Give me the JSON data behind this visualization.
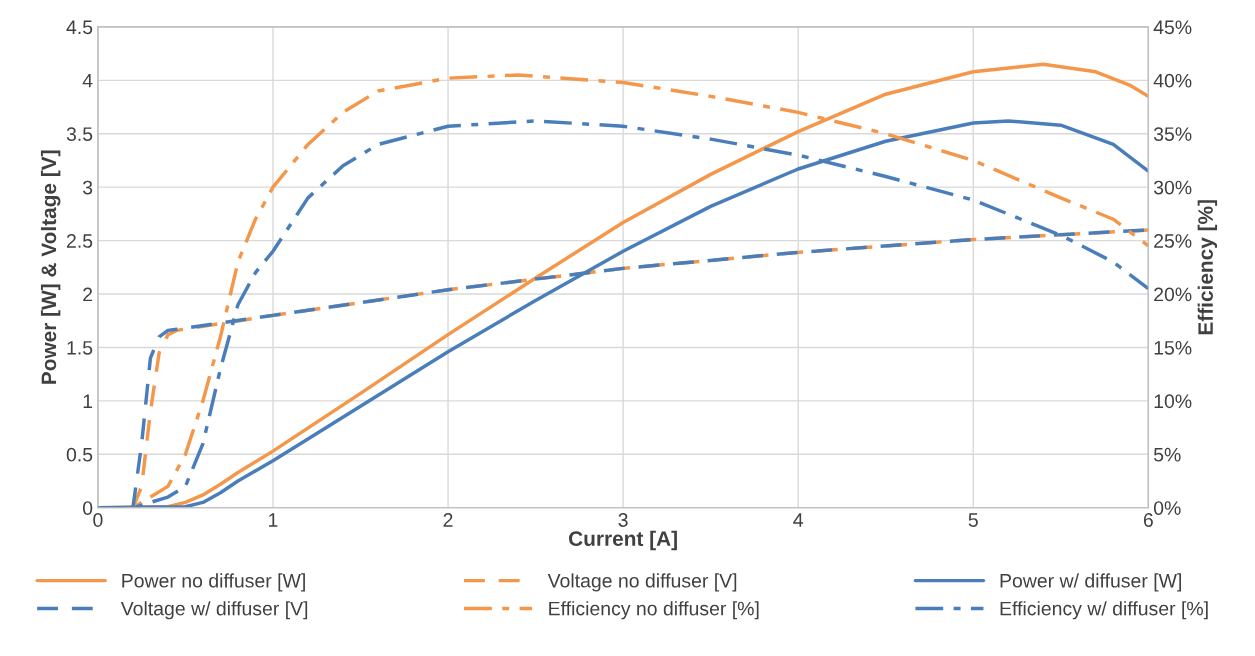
{
  "chart_data": {
    "type": "line",
    "xlabel": "Current [A]",
    "ylabel": "Power [W] & Voltage [V]",
    "y2label": "Efficiency [%]",
    "xlim": [
      0,
      6
    ],
    "xticks": [
      0,
      1,
      2,
      3,
      4,
      5,
      6
    ],
    "ylim": [
      0,
      4.5
    ],
    "yticks": [
      0,
      0.5,
      1,
      1.5,
      2,
      2.5,
      3,
      3.5,
      4,
      4.5
    ],
    "y2lim": [
      0,
      45
    ],
    "y2ticks": [
      {
        "value": 0,
        "label": "0%"
      },
      {
        "value": 5,
        "label": "5%"
      },
      {
        "value": 10,
        "label": "10%"
      },
      {
        "value": 15,
        "label": "15%"
      },
      {
        "value": 20,
        "label": "20%"
      },
      {
        "value": 25,
        "label": "25%"
      },
      {
        "value": 30,
        "label": "30%"
      },
      {
        "value": 35,
        "label": "35%"
      },
      {
        "value": 40,
        "label": "40%"
      },
      {
        "value": 45,
        "label": "45%"
      }
    ],
    "grid": true,
    "legend": "bottom",
    "marker": "none",
    "series": [
      {
        "name": "Power no diffuser [W]",
        "color": "#f4974a",
        "line_style": "solid",
        "x": [
          0,
          0.4,
          0.5,
          0.6,
          0.7,
          0.8,
          1,
          1.5,
          2,
          2.5,
          3,
          3.5,
          4,
          4.5,
          5,
          5.4,
          5.7,
          5.9,
          6
        ],
        "values": [
          0,
          0.01,
          0.05,
          0.12,
          0.22,
          0.33,
          0.53,
          1.07,
          1.62,
          2.15,
          2.67,
          3.12,
          3.52,
          3.87,
          4.08,
          4.15,
          4.08,
          3.95,
          3.85
        ]
      },
      {
        "name": "Voltage no diffuser [V]",
        "color": "#f4974a",
        "line_style": "dashed",
        "x": [
          0,
          0.2,
          0.25,
          0.3,
          0.35,
          0.4,
          0.45,
          1,
          2,
          3,
          4,
          5,
          6
        ],
        "values": [
          0,
          0,
          0.2,
          0.9,
          1.45,
          1.62,
          1.66,
          1.8,
          2.04,
          2.24,
          2.39,
          2.51,
          2.6
        ]
      },
      {
        "name": "Power w/ diffuser [W]",
        "color": "#4a7ebb",
        "line_style": "solid",
        "x": [
          0,
          0.5,
          0.6,
          0.7,
          0.8,
          1,
          1.5,
          2,
          2.5,
          3,
          3.5,
          4,
          4.5,
          5,
          5.2,
          5.5,
          5.8,
          6
        ],
        "values": [
          0,
          0.01,
          0.05,
          0.14,
          0.25,
          0.44,
          0.95,
          1.46,
          1.94,
          2.4,
          2.82,
          3.17,
          3.43,
          3.6,
          3.62,
          3.58,
          3.4,
          3.15
        ]
      },
      {
        "name": "Voltage w/ diffuser [V]",
        "color": "#4a7ebb",
        "line_style": "dashed",
        "x": [
          0,
          0.2,
          0.25,
          0.3,
          0.35,
          0.4,
          0.45,
          1,
          2,
          3,
          4,
          5,
          6
        ],
        "values": [
          0,
          0,
          0.6,
          1.4,
          1.6,
          1.66,
          1.67,
          1.8,
          2.04,
          2.24,
          2.39,
          2.51,
          2.6
        ]
      },
      {
        "name": "Efficiency no diffuser [%]",
        "color": "#f4974a",
        "line_style": "dashdot",
        "axis": "y2",
        "x": [
          0,
          0.2,
          0.3,
          0.4,
          0.5,
          0.6,
          0.7,
          0.8,
          0.9,
          1,
          1.2,
          1.4,
          1.6,
          2,
          2.4,
          3,
          3.5,
          4,
          4.5,
          5,
          5.5,
          5.8,
          6
        ],
        "values": [
          0,
          0,
          1,
          2,
          5,
          10,
          16,
          23,
          27,
          30,
          34,
          37,
          39,
          40.2,
          40.5,
          39.8,
          38.5,
          37,
          35,
          32.5,
          29,
          27,
          24.5
        ]
      },
      {
        "name": "Efficiency w/ diffuser [%]",
        "color": "#4a7ebb",
        "line_style": "dashdot",
        "axis": "y2",
        "x": [
          0,
          0.2,
          0.4,
          0.5,
          0.6,
          0.7,
          0.8,
          0.9,
          1,
          1.2,
          1.4,
          1.6,
          2,
          2.5,
          3,
          3.5,
          4,
          4.5,
          5,
          5.5,
          5.8,
          6
        ],
        "values": [
          0,
          0,
          1,
          2,
          6,
          13,
          19,
          22,
          24,
          29,
          32,
          34,
          35.7,
          36.2,
          35.7,
          34.5,
          33,
          31,
          28.8,
          25.5,
          23,
          20.5
        ]
      }
    ]
  }
}
